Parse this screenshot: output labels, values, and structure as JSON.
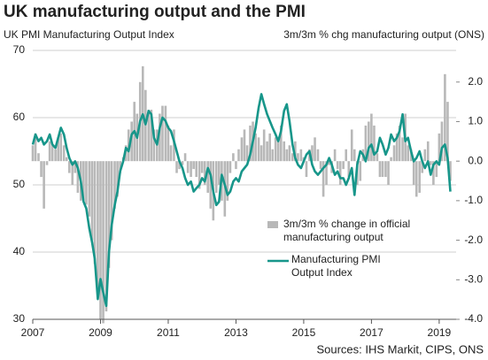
{
  "chart_data": {
    "type": "combo",
    "title": "UK manufacturing output and the PMI",
    "y_label": "UK PMI Manufacturing Output Index",
    "y2_label": "3m/3m % chg manufacturing output (ONS)",
    "source": "Sources: IHS Markit, CIPS, ONS",
    "legend": "center-right",
    "grid": true,
    "xlim": [
      2007,
      2019.5
    ],
    "xticks": [
      2007,
      2009,
      2011,
      2013,
      2015,
      2017,
      2019
    ],
    "ylim": [
      30,
      70
    ],
    "yticks": [
      30,
      40,
      50,
      60,
      70
    ],
    "y2lim": [
      -4,
      2.8
    ],
    "y2ticks": [
      {
        "value": 2,
        "label": "2.0"
      },
      {
        "value": 1,
        "label": "1.0"
      },
      {
        "value": 0,
        "label": "0.0"
      },
      {
        "value": -1,
        "label": "-1.0"
      },
      {
        "value": -2,
        "label": "-2.0"
      },
      {
        "value": -3,
        "label": "-3.0"
      },
      {
        "value": -4,
        "label": "-4.0"
      }
    ],
    "x": [
      2007.0,
      2007.08,
      2007.17,
      2007.25,
      2007.33,
      2007.42,
      2007.5,
      2007.58,
      2007.67,
      2007.75,
      2007.83,
      2007.92,
      2008.0,
      2008.08,
      2008.17,
      2008.25,
      2008.33,
      2008.42,
      2008.5,
      2008.58,
      2008.67,
      2008.75,
      2008.83,
      2008.92,
      2009.0,
      2009.08,
      2009.17,
      2009.25,
      2009.33,
      2009.42,
      2009.5,
      2009.58,
      2009.67,
      2009.75,
      2009.83,
      2009.92,
      2010.0,
      2010.08,
      2010.17,
      2010.25,
      2010.33,
      2010.42,
      2010.5,
      2010.58,
      2010.67,
      2010.75,
      2010.83,
      2010.92,
      2011.0,
      2011.08,
      2011.17,
      2011.25,
      2011.33,
      2011.42,
      2011.5,
      2011.58,
      2011.67,
      2011.75,
      2011.83,
      2011.92,
      2012.0,
      2012.08,
      2012.17,
      2012.25,
      2012.33,
      2012.42,
      2012.5,
      2012.58,
      2012.67,
      2012.75,
      2012.83,
      2012.92,
      2013.0,
      2013.08,
      2013.17,
      2013.25,
      2013.33,
      2013.42,
      2013.5,
      2013.58,
      2013.67,
      2013.75,
      2013.83,
      2013.92,
      2014.0,
      2014.08,
      2014.17,
      2014.25,
      2014.33,
      2014.42,
      2014.5,
      2014.58,
      2014.67,
      2014.75,
      2014.83,
      2014.92,
      2015.0,
      2015.08,
      2015.17,
      2015.25,
      2015.33,
      2015.42,
      2015.5,
      2015.58,
      2015.67,
      2015.75,
      2015.83,
      2015.92,
      2016.0,
      2016.08,
      2016.17,
      2016.25,
      2016.33,
      2016.42,
      2016.5,
      2016.58,
      2016.67,
      2016.75,
      2016.83,
      2016.92,
      2017.0,
      2017.08,
      2017.17,
      2017.25,
      2017.33,
      2017.42,
      2017.5,
      2017.58,
      2017.67,
      2017.75,
      2017.83,
      2017.92,
      2018.0,
      2018.08,
      2018.17,
      2018.25,
      2018.33,
      2018.42,
      2018.5,
      2018.58,
      2018.67,
      2018.75,
      2018.83,
      2018.92,
      2019.0,
      2019.08,
      2019.17,
      2019.25,
      2019.33
    ],
    "series": [
      {
        "name": "3m/3m % change in official manufacturing output",
        "type": "bar",
        "axis": "y2",
        "color": "#b8b8b8",
        "values": [
          0.4,
          0.7,
          0.2,
          -0.4,
          -1.2,
          -0.1,
          0.5,
          0.4,
          0.3,
          0.6,
          0.7,
          0.4,
          0.1,
          -0.3,
          -0.6,
          -0.3,
          -0.8,
          -1.0,
          -1.0,
          -1.1,
          -1.4,
          -2.0,
          -2.6,
          -3.2,
          -4.0,
          -4.1,
          -3.8,
          -2.7,
          -2.0,
          -1.2,
          -0.9,
          -0.3,
          0.1,
          0.4,
          0.8,
          1.0,
          1.5,
          1.2,
          2.0,
          2.4,
          1.8,
          1.3,
          1.3,
          0.8,
          0.8,
          1.2,
          1.4,
          1.4,
          0.9,
          0.4,
          0.8,
          -0.3,
          -0.2,
          -0.1,
          0.2,
          -0.3,
          -0.4,
          -0.2,
          -0.4,
          -0.7,
          -0.3,
          -0.6,
          -0.8,
          -1.2,
          -1.5,
          -0.8,
          -0.6,
          -1.0,
          -1.4,
          -1.0,
          -0.3,
          0.2,
          -0.2,
          0.3,
          0.6,
          0.8,
          0.4,
          0.9,
          1.0,
          0.7,
          0.6,
          0.4,
          0.8,
          0.5,
          0.7,
          0.3,
          0.6,
          0.5,
          0.9,
          0.5,
          0.3,
          0.4,
          0.2,
          0.5,
          0.2,
          0.3,
          0.1,
          -0.4,
          0.3,
          0.4,
          0.6,
          0.3,
          -0.2,
          -0.9,
          -0.6,
          -0.1,
          -0.3,
          0.3,
          -0.2,
          -0.6,
          -0.2,
          0.3,
          -0.4,
          0.8,
          0.3,
          -0.6,
          -0.5,
          0.3,
          0.9,
          1.0,
          1.2,
          0.9,
          0.2,
          -0.4,
          -0.4,
          -0.4,
          -0.6,
          0.1,
          0.4,
          0.7,
          0.9,
          0.6,
          1.2,
          0.4,
          0.3,
          -0.6,
          -0.9,
          -0.8,
          -0.3,
          0.3,
          0.5,
          -0.1,
          -0.6,
          -0.4,
          0.7,
          1.0,
          2.2,
          1.5,
          -0.5
        ]
      },
      {
        "name": "Manufacturing PMI Output Index",
        "type": "line",
        "axis": "y",
        "color": "#17968a",
        "values": [
          56.0,
          57.5,
          56.5,
          57.0,
          56.0,
          56.5,
          57.5,
          56.0,
          55.5,
          57.0,
          58.5,
          57.5,
          55.5,
          54.0,
          53.0,
          53.5,
          52.5,
          50.5,
          47.5,
          46.5,
          43.5,
          41.5,
          39.0,
          33.0,
          36.0,
          34.0,
          32.0,
          40.0,
          44.0,
          47.0,
          49.0,
          52.0,
          53.5,
          55.5,
          55.0,
          57.5,
          58.0,
          57.0,
          59.5,
          60.5,
          59.0,
          61.0,
          60.5,
          57.0,
          56.0,
          58.5,
          60.0,
          59.5,
          58.5,
          58.0,
          56.5,
          55.0,
          53.5,
          52.5,
          51.0,
          50.0,
          50.5,
          49.0,
          49.5,
          50.0,
          51.0,
          50.5,
          52.5,
          51.5,
          49.0,
          47.0,
          47.5,
          51.5,
          50.0,
          48.5,
          49.0,
          50.5,
          51.0,
          50.5,
          52.0,
          52.5,
          53.0,
          54.5,
          56.5,
          58.5,
          61.5,
          63.5,
          62.0,
          60.5,
          59.5,
          58.5,
          57.5,
          56.5,
          58.0,
          61.0,
          62.0,
          59.5,
          56.0,
          54.0,
          53.0,
          52.5,
          53.5,
          54.5,
          55.0,
          53.0,
          52.0,
          51.5,
          52.0,
          52.5,
          53.0,
          54.0,
          53.0,
          51.5,
          52.0,
          51.0,
          51.0,
          50.0,
          51.0,
          52.5,
          48.5,
          53.0,
          55.0,
          54.5,
          53.5,
          55.5,
          56.0,
          54.5,
          55.0,
          57.0,
          56.0,
          54.5,
          55.5,
          57.5,
          56.5,
          57.0,
          58.0,
          60.5,
          56.5,
          57.0,
          55.0,
          53.5,
          54.0,
          55.0,
          53.5,
          52.5,
          53.5,
          51.5,
          53.0,
          53.5,
          53.0,
          55.5,
          56.0,
          54.0,
          49.0
        ]
      }
    ]
  }
}
